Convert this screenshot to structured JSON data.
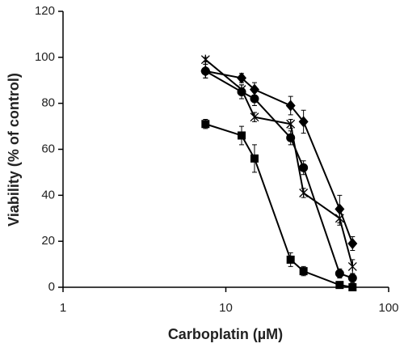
{
  "chart_data": {
    "type": "line",
    "x_label": "Carboplatin (µM)",
    "y_label": "Viability (% of control)",
    "x": [
      7.5,
      12.5,
      15,
      25,
      30,
      50,
      60
    ],
    "series": [
      {
        "marker": "diamond",
        "color": "#000000",
        "values": [
          94,
          91,
          86,
          79,
          72,
          34,
          19
        ],
        "errors": [
          3,
          2,
          3,
          4,
          5,
          6,
          3
        ]
      },
      {
        "marker": "circle",
        "color": "#000000",
        "values": [
          94,
          85,
          82,
          65,
          52,
          6,
          4
        ],
        "errors": [
          3,
          3,
          3,
          3,
          3,
          2,
          2
        ]
      },
      {
        "marker": "x",
        "color": "#000000",
        "values": [
          99,
          86,
          74,
          71,
          41,
          30,
          9
        ],
        "errors": [
          1,
          2,
          2,
          2,
          2,
          3,
          3
        ]
      },
      {
        "marker": "square",
        "color": "#000000",
        "values": [
          71,
          66,
          56,
          12,
          7,
          1,
          0
        ],
        "errors": [
          2,
          4,
          6,
          3,
          2,
          1,
          1
        ]
      }
    ],
    "xlog": true,
    "xlim": [
      1,
      100
    ],
    "xticks": [
      1,
      10,
      100
    ],
    "ylim": [
      0,
      120
    ],
    "yticks": [
      0,
      20,
      40,
      60,
      80,
      100,
      120
    ],
    "grid": false
  }
}
